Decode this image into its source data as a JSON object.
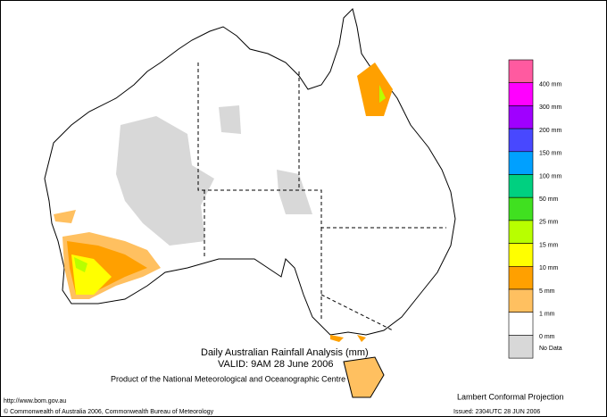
{
  "title": "Daily Australian Rainfall Analysis (mm)",
  "valid": "VALID: 9AM 28 June 2006",
  "product": "Product of the National Meteorological and Oceanographic Centre",
  "url": "http://www.bom.gov.au",
  "copyright": "© Commonwealth of Australia 2006, Commonwealth Bureau of Meteorology",
  "projection": "Lambert Conformal Projection",
  "issued": "Issued: 2304UTC 28 JUN 2006",
  "legend": [
    {
      "color": "#ff5aa0",
      "label": "400 mm"
    },
    {
      "color": "#ff00ff",
      "label": "300 mm"
    },
    {
      "color": "#a000ff",
      "label": "200 mm"
    },
    {
      "color": "#4848ff",
      "label": "150 mm"
    },
    {
      "color": "#00a0ff",
      "label": "100 mm"
    },
    {
      "color": "#00d080",
      "label": "50 mm"
    },
    {
      "color": "#40e020",
      "label": "25 mm"
    },
    {
      "color": "#b8ff00",
      "label": "15 mm"
    },
    {
      "color": "#ffff00",
      "label": "10 mm"
    },
    {
      "color": "#ffa000",
      "label": "5 mm"
    },
    {
      "color": "#ffc060",
      "label": "1 mm"
    },
    {
      "color": "#ffffff",
      "label": "0 mm"
    },
    {
      "color": "#d8d8d8",
      "label": "No Data"
    }
  ]
}
